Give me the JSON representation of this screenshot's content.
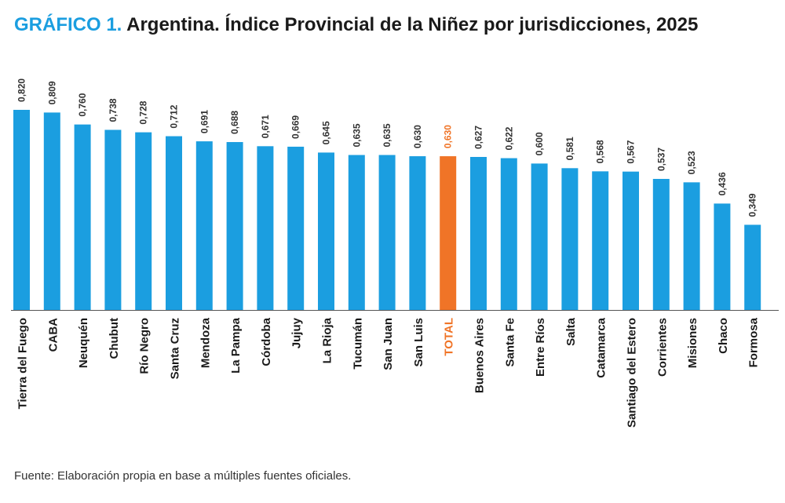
{
  "title": {
    "prefix": "GRÁFICO 1.",
    "text": "Argentina. Índice Provincial de la Niñez por jurisdicciones, 2025"
  },
  "source": "Fuente: Elaboración propia en base a múltiples fuentes oficiales.",
  "colors": {
    "bar": "#1b9ee0",
    "highlight": "#f07427",
    "text": "#1a1a1a",
    "axis": "#555555"
  },
  "chart_data": {
    "type": "bar",
    "title": "Argentina. Índice Provincial de la Niñez por jurisdicciones, 2025",
    "xlabel": "",
    "ylabel": "",
    "ylim": [
      0,
      0.85
    ],
    "grid": false,
    "highlight_category": "TOTAL",
    "categories": [
      "Tierra del Fuego",
      "CABA",
      "Neuquén",
      "Chubut",
      "Río Negro",
      "Santa Cruz",
      "Mendoza",
      "La Pampa",
      "Córdoba",
      "Jujuy",
      "La Rioja",
      "Tucumán",
      "San Juan",
      "San Luis",
      "TOTAL",
      "Buenos Aires",
      "Santa Fe",
      "Entre Ríos",
      "Salta",
      "Catamarca",
      "Santiago del Estero",
      "Corrientes",
      "Misiones",
      "Chaco",
      "Formosa"
    ],
    "values": [
      0.82,
      0.809,
      0.76,
      0.738,
      0.728,
      0.712,
      0.691,
      0.688,
      0.671,
      0.669,
      0.645,
      0.635,
      0.635,
      0.63,
      0.63,
      0.627,
      0.622,
      0.6,
      0.581,
      0.568,
      0.567,
      0.537,
      0.523,
      0.436,
      0.349
    ],
    "value_labels": [
      "0,820",
      "0,809",
      "0,760",
      "0,738",
      "0,728",
      "0,712",
      "0,691",
      "0,688",
      "0,671",
      "0,669",
      "0,645",
      "0,635",
      "0,635",
      "0,630",
      "0,630",
      "0,627",
      "0,622",
      "0,600",
      "0,581",
      "0,568",
      "0,567",
      "0,537",
      "0,523",
      "0,436",
      "0,349"
    ]
  }
}
